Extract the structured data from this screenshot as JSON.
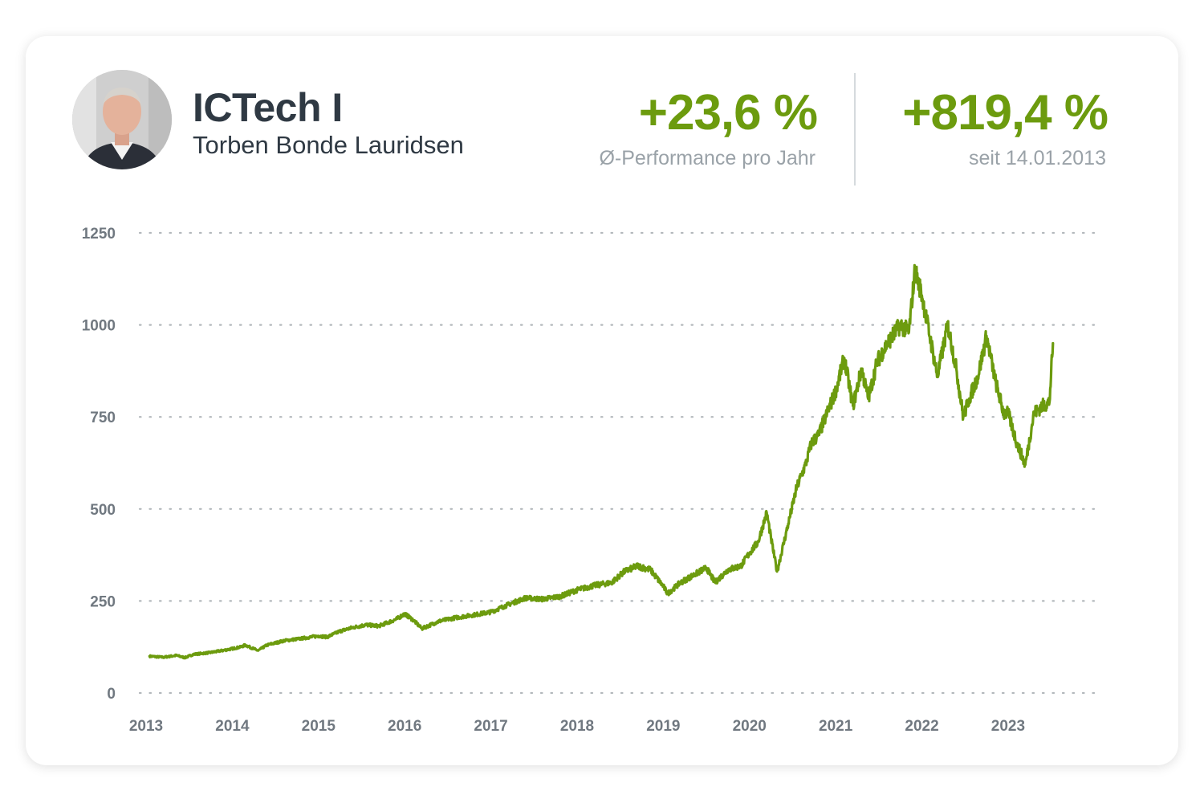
{
  "header": {
    "fund_name": "ICTech I",
    "manager_name": "Torben Bonde Lauridsen",
    "kpi_annual": {
      "value": "+23,6 %",
      "label": "Ø-Performance pro Jahr"
    },
    "kpi_total": {
      "value": "+819,4 %",
      "label": "seit 14.01.2013"
    }
  },
  "colors": {
    "accent": "#6c9b0e",
    "title": "#2f3943",
    "grid": "#b3b8bc",
    "tick": "#707880"
  },
  "chart_data": {
    "type": "line",
    "title": "",
    "xlabel": "",
    "ylabel": "",
    "xlim": [
      2013.0,
      2023.55
    ],
    "ylim": [
      0,
      1250
    ],
    "yticks": [
      0,
      250,
      500,
      750,
      1000,
      1250
    ],
    "xticks": [
      2013,
      2014,
      2015,
      2016,
      2017,
      2018,
      2019,
      2020,
      2021,
      2022,
      2023
    ],
    "grid": "horizontal-dotted",
    "legend": "none",
    "series": [
      {
        "color": "#6c9b0e",
        "x": [
          2013.04,
          2013.2,
          2013.35,
          2013.45,
          2013.55,
          2013.75,
          2013.95,
          2014.1,
          2014.15,
          2014.3,
          2014.4,
          2014.6,
          2014.8,
          2015.0,
          2015.1,
          2015.25,
          2015.4,
          2015.55,
          2015.7,
          2015.9,
          2016.0,
          2016.1,
          2016.2,
          2016.4,
          2016.6,
          2016.8,
          2017.0,
          2017.2,
          2017.4,
          2017.6,
          2017.8,
          2018.0,
          2018.2,
          2018.4,
          2018.55,
          2018.7,
          2018.85,
          2019.0,
          2019.05,
          2019.2,
          2019.35,
          2019.5,
          2019.6,
          2019.75,
          2019.9,
          2020.0,
          2020.1,
          2020.2,
          2020.25,
          2020.32,
          2020.45,
          2020.55,
          2020.65,
          2020.72,
          2020.8,
          2020.9,
          2021.0,
          2021.1,
          2021.2,
          2021.3,
          2021.38,
          2021.48,
          2021.6,
          2021.75,
          2021.85,
          2021.92,
          2022.0,
          2022.1,
          2022.18,
          2022.3,
          2022.4,
          2022.48,
          2022.55,
          2022.65,
          2022.75,
          2022.85,
          2022.95,
          2023.0,
          2023.1,
          2023.2,
          2023.3,
          2023.4,
          2023.48,
          2023.52
        ],
        "y": [
          100,
          97,
          102,
          96,
          105,
          110,
          118,
          125,
          130,
          115,
          130,
          142,
          148,
          155,
          152,
          168,
          178,
          185,
          182,
          200,
          215,
          198,
          175,
          195,
          205,
          212,
          220,
          240,
          258,
          255,
          262,
          280,
          292,
          300,
          330,
          345,
          335,
          290,
          270,
          300,
          320,
          340,
          300,
          335,
          345,
          380,
          410,
          490,
          420,
          330,
          460,
          560,
          620,
          680,
          700,
          760,
          820,
          910,
          780,
          880,
          800,
          900,
          950,
          1000,
          980,
          1150,
          1080,
          960,
          860,
          1000,
          880,
          750,
          800,
          860,
          970,
          850,
          760,
          760,
          680,
          620,
          760,
          780,
          790,
          950
        ]
      }
    ]
  }
}
